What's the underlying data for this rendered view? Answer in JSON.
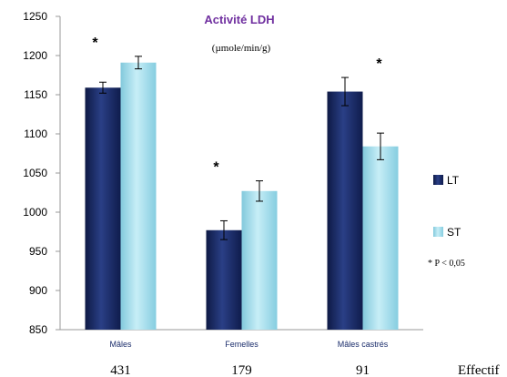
{
  "chart_data": {
    "type": "bar",
    "title": "Activité LDH",
    "subtitle": "(µmole/min/g)",
    "categories": [
      "Mâles",
      "Femelles",
      "Mâles castrés"
    ],
    "counts": [
      "431",
      "179",
      "91"
    ],
    "counts_label": "Effectif",
    "series": [
      {
        "name": "LT",
        "values": [
          1159,
          977,
          1154
        ],
        "errors": [
          7,
          12,
          18
        ],
        "color": "#1b2d6b"
      },
      {
        "name": "ST",
        "values": [
          1191,
          1027,
          1084
        ],
        "errors": [
          8,
          13,
          17
        ],
        "color": "#9fdbea"
      }
    ],
    "significance_marker": "*",
    "significance_note": "* P < 0,05",
    "ylim": [
      850,
      1250
    ],
    "yticks": [
      "850",
      "900",
      "950",
      "1000",
      "1050",
      "1100",
      "1150",
      "1200",
      "1250"
    ],
    "xlabel": "",
    "ylabel": "",
    "legend": "right",
    "grid": false
  }
}
